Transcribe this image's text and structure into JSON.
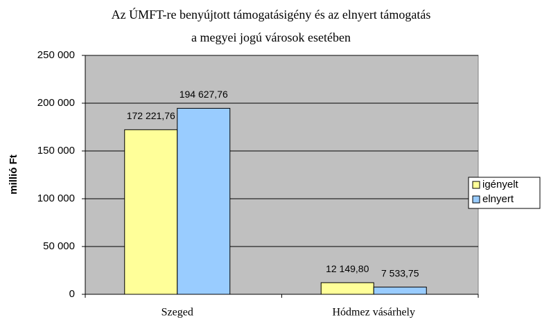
{
  "chart_data": {
    "type": "bar",
    "title": [
      "Az ÚMFT-re benyújtott támogatásigény és az elnyert támogatás",
      "a megyei jogú városok esetében"
    ],
    "ylabel": "millió Ft",
    "categories": [
      "Szeged",
      "Hódmez vásárhely"
    ],
    "series": [
      {
        "name": "igényelt",
        "color": "#ffff99",
        "values": [
          172221.76,
          12149.8
        ],
        "value_labels": [
          "172 221,76",
          "12 149,80"
        ]
      },
      {
        "name": "elnyert",
        "color": "#99ccff",
        "values": [
          194627.76,
          7533.75
        ],
        "value_labels": [
          "194 627,76",
          "7 533,75"
        ]
      }
    ],
    "ylim": [
      0,
      250000
    ],
    "yticks": [
      {
        "value": 0,
        "label": "0"
      },
      {
        "value": 50000,
        "label": "50 000"
      },
      {
        "value": 100000,
        "label": "100 000"
      },
      {
        "value": 150000,
        "label": "150 000"
      },
      {
        "value": 200000,
        "label": "200 000"
      },
      {
        "value": 250000,
        "label": "250 000"
      }
    ],
    "grid": true,
    "plot_background": "#c0c0c0",
    "legend": "right"
  }
}
